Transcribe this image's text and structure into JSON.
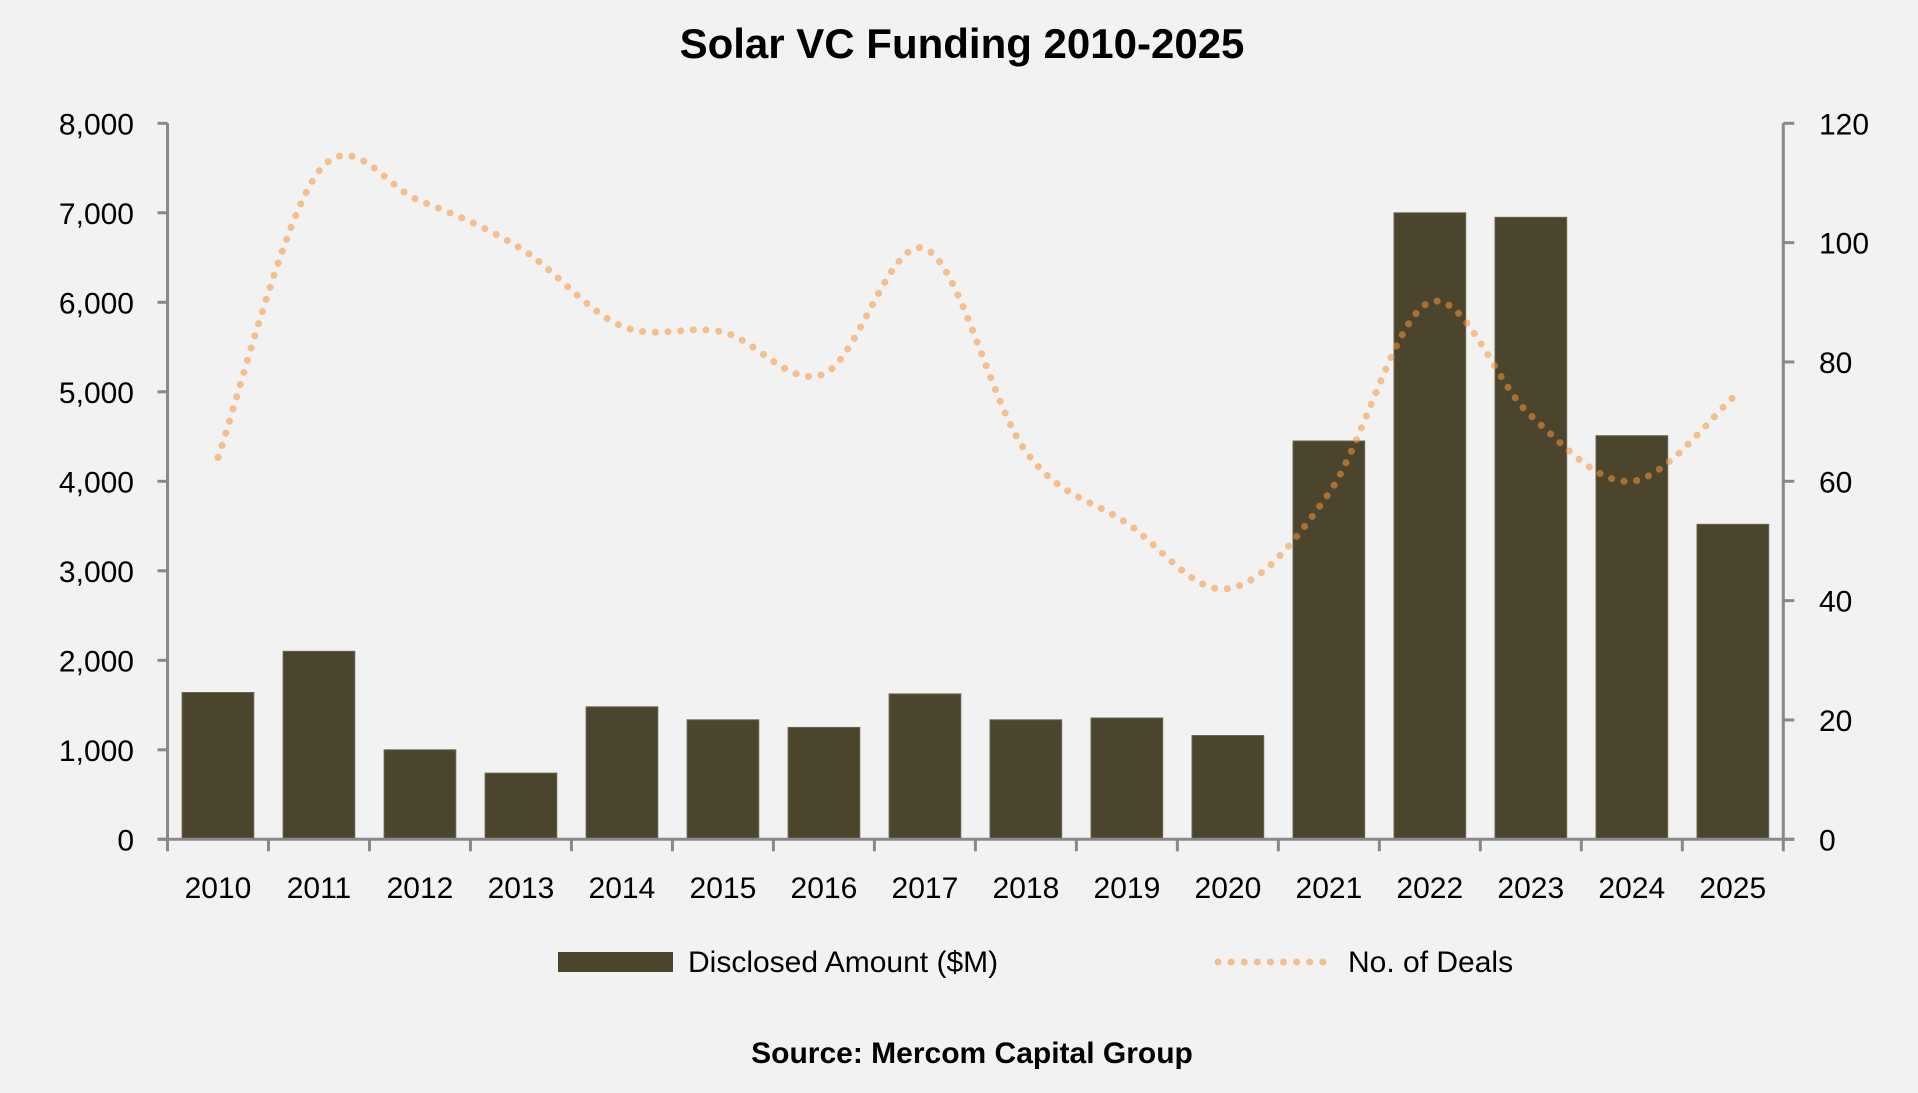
{
  "chart_data": {
    "type": "bar",
    "title": "Solar VC Funding 2010-2025",
    "source": "Source: Mercom Capital Group",
    "xlabel": "",
    "ylabel": "",
    "categories": [
      "2010",
      "2011",
      "2012",
      "2013",
      "2014",
      "2015",
      "2016",
      "2017",
      "2018",
      "2019",
      "2020",
      "2021",
      "2022",
      "2023",
      "2024",
      "2025"
    ],
    "series": [
      {
        "name": "Disclosed Amount ($M)",
        "type": "bar",
        "axis": "left",
        "color": "#4A452C",
        "values": [
          1640,
          2100,
          1000,
          740,
          1480,
          1335,
          1250,
          1625,
          1335,
          1355,
          1160,
          4450,
          7000,
          6950,
          4510,
          3520
        ]
      },
      {
        "name": "No. of Deals",
        "type": "line",
        "style": "dotted",
        "axis": "right",
        "color": "#F5963D",
        "opacity": 0.55,
        "values": [
          64,
          112,
          107,
          99,
          86,
          85,
          78,
          99,
          65,
          53,
          42,
          58,
          90,
          71,
          60,
          74
        ]
      }
    ],
    "y_left": {
      "ylim": [
        0,
        8000
      ],
      "ticks": [
        0,
        1000,
        2000,
        3000,
        4000,
        5000,
        6000,
        7000,
        8000
      ],
      "tick_labels": [
        "0",
        "1,000",
        "2,000",
        "3,000",
        "4,000",
        "5,000",
        "6,000",
        "7,000",
        "8,000"
      ]
    },
    "y_right": {
      "ylim": [
        0,
        120
      ],
      "ticks": [
        0,
        20,
        40,
        60,
        80,
        100,
        120
      ],
      "tick_labels": [
        "0",
        "20",
        "40",
        "60",
        "80",
        "100",
        "120"
      ]
    },
    "grid": false,
    "legend": {
      "position": "bottom",
      "entries": [
        "Disclosed Amount ($M)",
        "No. of Deals"
      ]
    },
    "background": "#F2F2F2",
    "axis_color": "#898989"
  }
}
